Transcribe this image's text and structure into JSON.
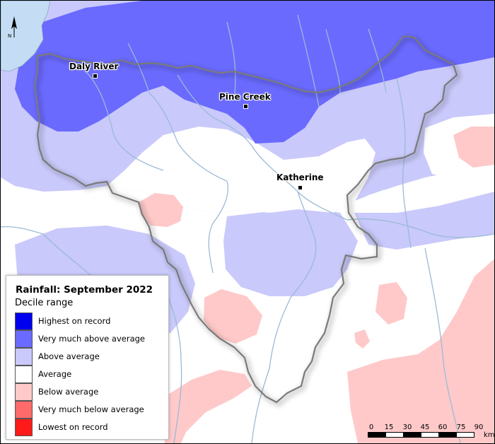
{
  "legend": {
    "title": "Rainfall: September 2022",
    "subtitle": "Decile range",
    "items": [
      {
        "label": "Highest on record",
        "color": "#0000ee"
      },
      {
        "label": "Very much above average",
        "color": "#6a6aff"
      },
      {
        "label": "Above average",
        "color": "#c9c9fb"
      },
      {
        "label": "Average",
        "color": "#ffffff"
      },
      {
        "label": "Below average",
        "color": "#ffc9c9"
      },
      {
        "label": "Very much below average",
        "color": "#ff6a6a"
      },
      {
        "label": "Lowest on record",
        "color": "#ff1a1a"
      }
    ]
  },
  "towns": [
    {
      "name": "Daly River"
    },
    {
      "name": "Pine Creek"
    },
    {
      "name": "Katherine"
    }
  ],
  "north_arrow": {
    "label": "N"
  },
  "scale_bar": {
    "ticks": [
      "0",
      "15",
      "30",
      "45",
      "60",
      "75",
      "90"
    ],
    "unit": "km"
  },
  "colors": {
    "water": "#c4dcf4",
    "rivers": "#9bbad6",
    "region_outline": "#7a7a7a"
  }
}
